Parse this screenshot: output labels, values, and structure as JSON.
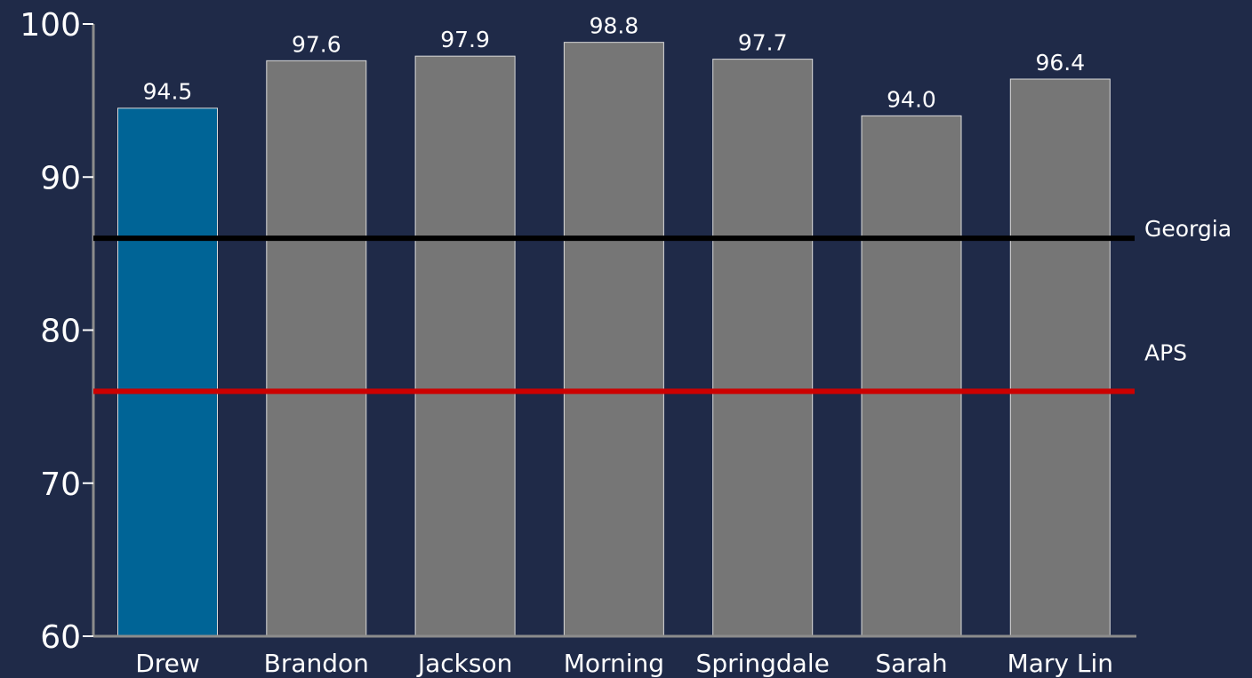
{
  "chart_data": {
    "type": "bar",
    "title": "",
    "xlabel": "",
    "ylabel": "",
    "categories": [
      "Drew",
      "Brandon",
      "Jackson",
      "Morning",
      "Springdale",
      "Sarah",
      "Mary Lin"
    ],
    "values": [
      94.5,
      97.6,
      97.9,
      98.8,
      97.7,
      94.0,
      96.4
    ],
    "data_labels": [
      "94.5",
      "97.6",
      "97.9",
      "98.8",
      "97.7",
      "94.0",
      "96.4"
    ],
    "ylim": [
      60,
      100
    ],
    "yticks": [
      60,
      70,
      80,
      90,
      100
    ],
    "ytick_labels": [
      "60",
      "70",
      "80",
      "90",
      "100"
    ],
    "highlight_category": "Drew",
    "reference_lines": [
      {
        "label": "Georgia",
        "value": 86,
        "color": "#000000"
      },
      {
        "label": "APS",
        "value": 76,
        "color": "#cc0000"
      }
    ],
    "grid": false,
    "legend": "none",
    "colors": {
      "background": "#1f2a48",
      "bar_default": "#767676",
      "bar_highlight": "#006496",
      "bar_outline": "#d9d9d9",
      "axis": "#8c8c8c",
      "text": "#ffffff"
    }
  }
}
